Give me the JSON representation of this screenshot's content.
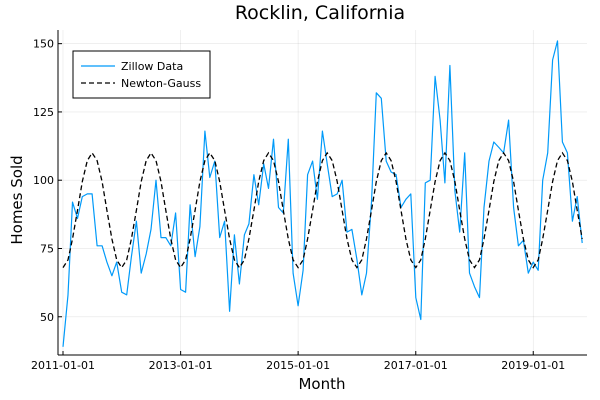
{
  "chart_data": {
    "type": "line",
    "title": "Rocklin, California",
    "xlabel": "Month",
    "ylabel": "Homes Sold",
    "x_range": [
      "2010-12-01",
      "2019-12-01"
    ],
    "ylim": [
      36,
      155
    ],
    "x_ticks": [
      "2011-01-01",
      "2013-01-01",
      "2015-01-01",
      "2017-01-01",
      "2019-01-01"
    ],
    "y_ticks": [
      50,
      75,
      100,
      125,
      150
    ],
    "grid": true,
    "legend_position": "top-left",
    "series": [
      {
        "name": "Zillow Data",
        "color": "#009af9",
        "dash": "solid",
        "dates": [
          "2011-01-01",
          "2011-02-01",
          "2011-03-01",
          "2011-04-01",
          "2011-05-01",
          "2011-06-01",
          "2011-07-01",
          "2011-08-01",
          "2011-09-01",
          "2011-10-01",
          "2011-11-01",
          "2011-12-01",
          "2012-01-01",
          "2012-02-01",
          "2012-03-01",
          "2012-04-01",
          "2012-05-01",
          "2012-06-01",
          "2012-07-01",
          "2012-08-01",
          "2012-09-01",
          "2012-10-01",
          "2012-11-01",
          "2012-12-01",
          "2013-01-01",
          "2013-02-01",
          "2013-03-01",
          "2013-04-01",
          "2013-05-01",
          "2013-06-01",
          "2013-07-01",
          "2013-08-01",
          "2013-09-01",
          "2013-10-01",
          "2013-11-01",
          "2013-12-01",
          "2014-01-01",
          "2014-02-01",
          "2014-03-01",
          "2014-04-01",
          "2014-05-01",
          "2014-06-01",
          "2014-07-01",
          "2014-08-01",
          "2014-09-01",
          "2014-10-01",
          "2014-11-01",
          "2014-12-01",
          "2015-01-01",
          "2015-02-01",
          "2015-03-01",
          "2015-04-01",
          "2015-05-01",
          "2015-06-01",
          "2015-07-01",
          "2015-08-01",
          "2015-09-01",
          "2015-10-01",
          "2015-11-01",
          "2015-12-01",
          "2016-01-01",
          "2016-02-01",
          "2016-03-01",
          "2016-04-01",
          "2016-05-01",
          "2016-06-01",
          "2016-07-01",
          "2016-08-01",
          "2016-09-01",
          "2016-10-01",
          "2016-11-01",
          "2016-12-01",
          "2017-01-01",
          "2017-02-01",
          "2017-03-01",
          "2017-04-01",
          "2017-05-01",
          "2017-06-01",
          "2017-07-01",
          "2017-08-01",
          "2017-09-01",
          "2017-10-01",
          "2017-11-01",
          "2017-12-01",
          "2018-01-01",
          "2018-02-01",
          "2018-03-01",
          "2018-04-01",
          "2018-05-01",
          "2018-06-01",
          "2018-07-01",
          "2018-08-01",
          "2018-09-01",
          "2018-10-01",
          "2018-11-01",
          "2018-12-01",
          "2019-01-01",
          "2019-02-01",
          "2019-03-01",
          "2019-04-01",
          "2019-05-01",
          "2019-06-01",
          "2019-07-01",
          "2019-08-01",
          "2019-09-01",
          "2019-10-01",
          "2019-11-01"
        ],
        "values": [
          39,
          58,
          92,
          86,
          94,
          95,
          95,
          76,
          76,
          70,
          65,
          70,
          59,
          58,
          72,
          85,
          66,
          73,
          82,
          100,
          79,
          79,
          76,
          88,
          60,
          59,
          91,
          72,
          83,
          118,
          101,
          107,
          79,
          85,
          52,
          80,
          62,
          80,
          84,
          102,
          91,
          106,
          97,
          115,
          90,
          88,
          115,
          66,
          54,
          67,
          102,
          107,
          93,
          118,
          106,
          94,
          95,
          100,
          81,
          82,
          71,
          58,
          66,
          92,
          132,
          130,
          107,
          103,
          102,
          90,
          93,
          95,
          57,
          49,
          99,
          100,
          138,
          122,
          99,
          142,
          96,
          81,
          110,
          66,
          61,
          57,
          90,
          107,
          114,
          112,
          110,
          122,
          90,
          76,
          78,
          66,
          70,
          67,
          100,
          110,
          144,
          151,
          114,
          110,
          85,
          94,
          77
        ]
      },
      {
        "name": "Newton-Gauss",
        "color": "#000000",
        "dash": "dashed",
        "model": "sinusoid",
        "mean": 89,
        "amplitude": 21,
        "period_months": 12,
        "peak_month": "July",
        "x_range": [
          "2011-01-01",
          "2019-11-01"
        ]
      }
    ]
  }
}
